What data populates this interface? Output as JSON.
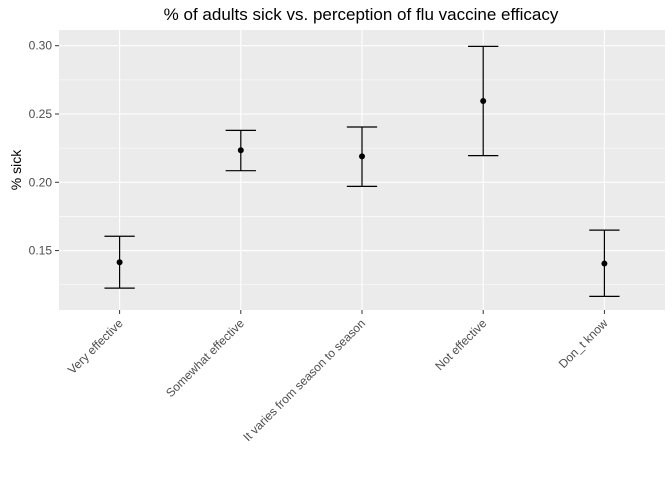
{
  "chart_data": {
    "type": "errorbar",
    "title": "% of adults sick vs. perception of flu vaccine efficacy",
    "xlabel": "",
    "ylabel": "% sick",
    "categories": [
      "Very effective",
      "Somewhat effective",
      "It varies from season to season",
      "Not effective",
      "Don_t know"
    ],
    "values": [
      0.1415,
      0.2235,
      0.219,
      0.2595,
      0.1405
    ],
    "lower": [
      0.1225,
      0.2085,
      0.197,
      0.2195,
      0.1165
    ],
    "upper": [
      0.1605,
      0.238,
      0.2405,
      0.2995,
      0.165
    ],
    "ylim": [
      0.1065,
      0.3115
    ],
    "yticks": [
      0.15,
      0.2,
      0.25,
      0.3
    ],
    "ytick_labels": [
      "0.15",
      "0.20",
      "0.25",
      "0.30"
    ],
    "grid": true,
    "legend": "none"
  }
}
